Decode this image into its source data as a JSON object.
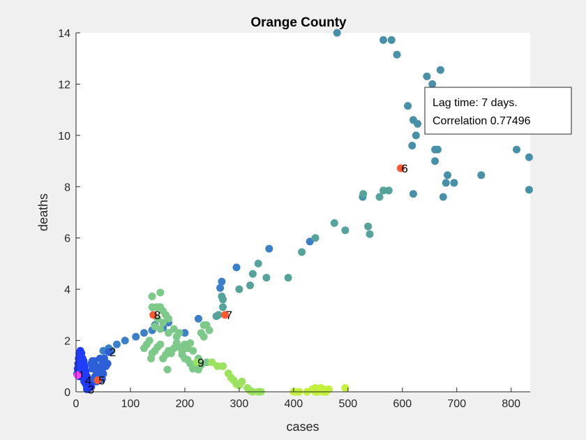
{
  "chart_data": {
    "type": "scatter",
    "title": "Orange County",
    "xlabel": "cases",
    "ylabel": "deaths",
    "xlim": [
      0,
      835
    ],
    "ylim": [
      0,
      14
    ],
    "xticks": [
      0,
      100,
      200,
      300,
      400,
      500,
      600,
      700,
      800
    ],
    "yticks": [
      0,
      2,
      4,
      6,
      8,
      10,
      12,
      14
    ],
    "grid": false,
    "annotation": {
      "lines": [
        "Lag time: 7 days.",
        "Correlation 0.77496"
      ],
      "placement": "top-right"
    },
    "colors": {
      "marker": "#ff5a2e",
      "series": [
        "#1f3cff",
        "#2d5fd9",
        "#3a7fc7",
        "#4790a8",
        "#55a39a",
        "#7dc98a",
        "#9be35e",
        "#c2f03c"
      ]
    },
    "series": [
      {
        "color": "#1f3cff",
        "points": [
          [
            2,
            0.7
          ],
          [
            3,
            0.9
          ],
          [
            4,
            1.1
          ],
          [
            5,
            1.3
          ],
          [
            6,
            1.5
          ],
          [
            8,
            1.6
          ],
          [
            10,
            1.5
          ],
          [
            12,
            1.3
          ],
          [
            14,
            1.2
          ],
          [
            16,
            1.0
          ],
          [
            18,
            0.8
          ],
          [
            20,
            0.6
          ],
          [
            22,
            0.5
          ],
          [
            24,
            0.4
          ],
          [
            26,
            0.3
          ],
          [
            28,
            0.2
          ],
          [
            15,
            0.4
          ],
          [
            18,
            0.3
          ],
          [
            20,
            0.2
          ],
          [
            22,
            0.1
          ],
          [
            24,
            0.15
          ],
          [
            12,
            0.6
          ],
          [
            10,
            0.8
          ],
          [
            8,
            1.0
          ],
          [
            6,
            0.6
          ],
          [
            4,
            0.8
          ],
          [
            9,
            1.2
          ],
          [
            11,
            1.0
          ],
          [
            13,
            0.9
          ],
          [
            17,
            0.7
          ],
          [
            19,
            0.5
          ],
          [
            21,
            0.3
          ],
          [
            25,
            0.25
          ],
          [
            27,
            0.35
          ]
        ]
      },
      {
        "color": "#2d5fd9",
        "points": [
          [
            30,
            0.9
          ],
          [
            32,
            1.1
          ],
          [
            34,
            1.2
          ],
          [
            36,
            1.0
          ],
          [
            38,
            0.8
          ],
          [
            40,
            0.7
          ],
          [
            42,
            0.9
          ],
          [
            44,
            1.3
          ],
          [
            46,
            1.0
          ],
          [
            48,
            0.8
          ],
          [
            50,
            1.1
          ],
          [
            52,
            1.3
          ],
          [
            55,
            1.0
          ],
          [
            58,
            1.1
          ],
          [
            30,
            1.2
          ],
          [
            35,
            0.6
          ],
          [
            40,
            0.5
          ],
          [
            45,
            0.6
          ],
          [
            50,
            0.7
          ],
          [
            28,
            1.1
          ],
          [
            33,
            0.5
          ],
          [
            38,
            0.4
          ],
          [
            43,
            0.45
          ],
          [
            48,
            0.5
          ]
        ]
      },
      {
        "color": "#3a7fc7",
        "points": [
          [
            50,
            1.6
          ],
          [
            60,
            1.7
          ],
          [
            65,
            1.6
          ],
          [
            75,
            1.85
          ],
          [
            90,
            2.0
          ],
          [
            110,
            2.15
          ],
          [
            125,
            2.3
          ],
          [
            140,
            2.4
          ],
          [
            145,
            2.6
          ],
          [
            160,
            2.5
          ],
          [
            170,
            2.7
          ],
          [
            200,
            2.3
          ],
          [
            225,
            2.85
          ],
          [
            265,
            4.05
          ],
          [
            268,
            4.3
          ],
          [
            295,
            4.85
          ],
          [
            355,
            5.58
          ],
          [
            430,
            5.86
          ]
        ]
      },
      {
        "color": "#4790a8",
        "points": [
          [
            480,
            14.0
          ],
          [
            565,
            13.72
          ],
          [
            580,
            13.72
          ],
          [
            590,
            13.15
          ],
          [
            645,
            12.3
          ],
          [
            655,
            12.0
          ],
          [
            670,
            12.55
          ],
          [
            610,
            11.15
          ],
          [
            620,
            10.6
          ],
          [
            628,
            10.45
          ],
          [
            625,
            10.0
          ],
          [
            618,
            9.6
          ],
          [
            660,
            9.45
          ],
          [
            665,
            9.45
          ],
          [
            660,
            9.0
          ],
          [
            683,
            8.45
          ],
          [
            695,
            8.15
          ],
          [
            680,
            8.15
          ],
          [
            620,
            7.72
          ],
          [
            675,
            7.6
          ],
          [
            745,
            8.45
          ],
          [
            810,
            9.45
          ],
          [
            833,
            9.15
          ],
          [
            833,
            7.88
          ],
          [
            527,
            7.6
          ]
        ]
      },
      {
        "color": "#55a39a",
        "points": [
          [
            528,
            7.72
          ],
          [
            558,
            7.6
          ],
          [
            565,
            7.85
          ],
          [
            575,
            7.85
          ],
          [
            475,
            6.58
          ],
          [
            495,
            6.3
          ],
          [
            537,
            6.45
          ],
          [
            540,
            6.15
          ],
          [
            440,
            6.0
          ],
          [
            415,
            5.45
          ],
          [
            335,
            5.0
          ],
          [
            325,
            4.6
          ],
          [
            320,
            4.15
          ],
          [
            350,
            4.45
          ],
          [
            390,
            4.45
          ],
          [
            300,
            4.0
          ],
          [
            268,
            3.72
          ],
          [
            270,
            3.6
          ],
          [
            270,
            3.3
          ],
          [
            258,
            2.95
          ],
          [
            262,
            3.0
          ]
        ]
      },
      {
        "color": "#7dc98a",
        "points": [
          [
            140,
            3.72
          ],
          [
            155,
            3.87
          ],
          [
            140,
            3.3
          ],
          [
            148,
            3.3
          ],
          [
            155,
            3.3
          ],
          [
            160,
            3.15
          ],
          [
            165,
            3.0
          ],
          [
            170,
            2.85
          ],
          [
            150,
            2.85
          ],
          [
            160,
            2.7
          ],
          [
            145,
            2.55
          ],
          [
            155,
            2.45
          ],
          [
            170,
            2.3
          ],
          [
            180,
            2.45
          ],
          [
            185,
            2.15
          ],
          [
            190,
            2.3
          ],
          [
            235,
            2.6
          ],
          [
            240,
            2.6
          ],
          [
            245,
            2.4
          ],
          [
            230,
            2.3
          ],
          [
            235,
            2.15
          ],
          [
            125,
            1.7
          ],
          [
            130,
            1.85
          ],
          [
            135,
            2.0
          ],
          [
            140,
            1.5
          ],
          [
            145,
            1.6
          ],
          [
            150,
            1.75
          ],
          [
            155,
            1.85
          ],
          [
            160,
            1.3
          ],
          [
            165,
            1.45
          ],
          [
            170,
            1.6
          ],
          [
            175,
            1.5
          ],
          [
            180,
            1.7
          ],
          [
            185,
            1.9
          ],
          [
            190,
            1.75
          ],
          [
            195,
            1.6
          ],
          [
            200,
            1.85
          ],
          [
            205,
            1.7
          ],
          [
            210,
            1.9
          ],
          [
            215,
            1.6
          ],
          [
            200,
            1.3
          ],
          [
            195,
            1.45
          ],
          [
            210,
            1.1
          ],
          [
            205,
            1.25
          ],
          [
            168,
            0.87
          ],
          [
            138,
            1.3
          ],
          [
            225,
            1.3
          ],
          [
            220,
            1.1
          ],
          [
            215,
            0.9
          ],
          [
            225,
            0.87
          ],
          [
            230,
            1.05
          ],
          [
            240,
            1.15
          ]
        ]
      },
      {
        "color": "#9be35e",
        "points": [
          [
            250,
            1.15
          ],
          [
            260,
            1.0
          ],
          [
            270,
            1.0
          ],
          [
            280,
            0.72
          ],
          [
            285,
            0.55
          ],
          [
            290,
            0.45
          ],
          [
            295,
            0.3
          ],
          [
            300,
            0.25
          ],
          [
            305,
            0.4
          ],
          [
            315,
            0.15
          ],
          [
            320,
            0.05
          ],
          [
            325,
            0.0
          ],
          [
            335,
            0.0
          ],
          [
            340,
            0.0
          ]
        ]
      },
      {
        "color": "#c2f03c",
        "points": [
          [
            400,
            0.0
          ],
          [
            405,
            0.0
          ],
          [
            410,
            0.0
          ],
          [
            425,
            0.0
          ],
          [
            435,
            0.1
          ],
          [
            440,
            0.15
          ],
          [
            445,
            0.0
          ],
          [
            450,
            0.15
          ],
          [
            455,
            0.1
          ],
          [
            460,
            0.0
          ],
          [
            465,
            0.1
          ],
          [
            495,
            0.15
          ],
          [
            440,
            0.0
          ],
          [
            455,
            0.0
          ]
        ]
      }
    ],
    "labeled_points": [
      {
        "label": "1",
        "x": 3,
        "y": 0.65,
        "color": "#ff3cff"
      },
      {
        "label": "2",
        "x": 60,
        "y": 1.55,
        "color": "#2d5fd9"
      },
      {
        "label": "3",
        "x": 20,
        "y": 0.1,
        "color": "#1f3cff"
      },
      {
        "label": "4",
        "x": 15,
        "y": 0.45,
        "color": "#1f3cff"
      },
      {
        "label": "5",
        "x": 40,
        "y": 0.45,
        "color": "#ff5a2e"
      },
      {
        "label": "6",
        "x": 597,
        "y": 8.72,
        "color": "#ff5a2e"
      },
      {
        "label": "7",
        "x": 274,
        "y": 3.0,
        "color": "#ff5a2e"
      },
      {
        "label": "8",
        "x": 142,
        "y": 3.0,
        "color": "#ff5a2e"
      },
      {
        "label": "9",
        "x": 222,
        "y": 1.15,
        "color": "#9be35e"
      }
    ]
  }
}
